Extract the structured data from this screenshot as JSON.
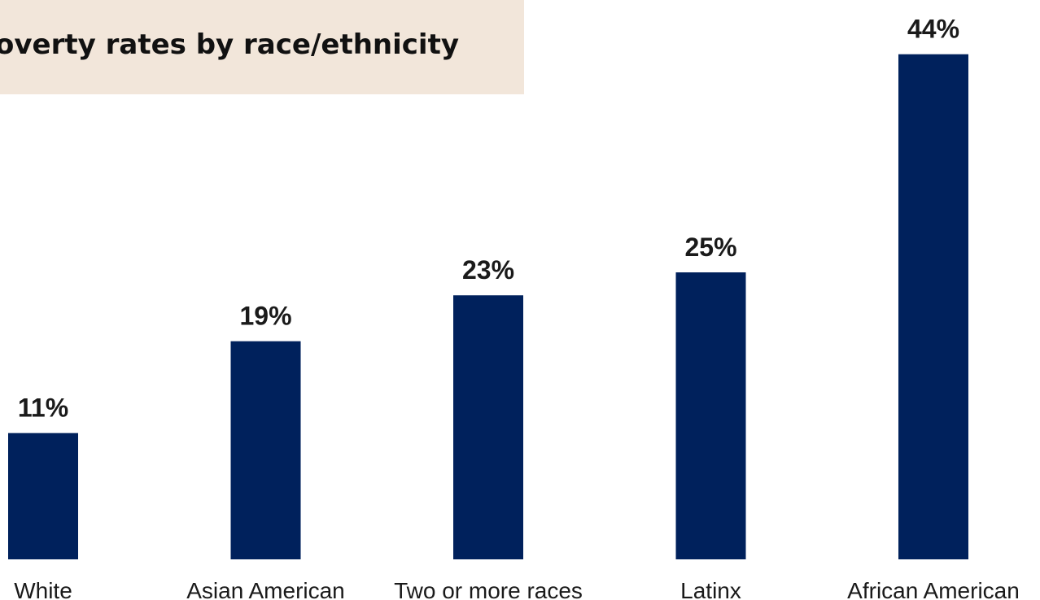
{
  "chart_data": {
    "type": "bar",
    "title": "overty rates by race/ethnicity",
    "categories": [
      "White",
      "Asian American",
      "Two or more races",
      "Latinx",
      "African American"
    ],
    "values": [
      11,
      19,
      23,
      25,
      44
    ],
    "value_labels": [
      "11%",
      "19%",
      "23%",
      "25%",
      "44%"
    ],
    "color": "#00215c"
  }
}
